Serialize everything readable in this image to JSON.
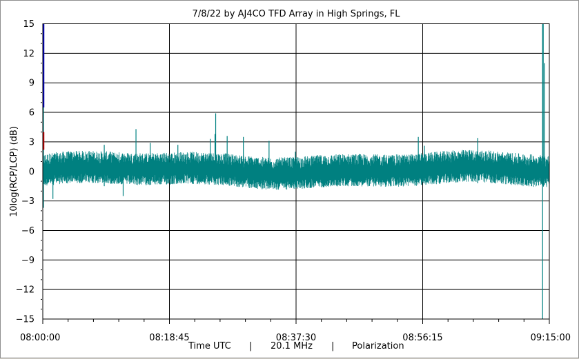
{
  "chart_data": {
    "type": "line",
    "title": "7/8/22  by  AJ4CO TFD Array  in  High Springs, FL",
    "xlabel": "Time UTC",
    "ylabel": "10log(RCP/LCP) (dB)",
    "frequency": "20.1 MHz",
    "mode": "Polarization",
    "separator": "|",
    "ylim": [
      -15,
      15
    ],
    "y_ticks": [
      15,
      12,
      9,
      6,
      3,
      0,
      -3,
      -6,
      -9,
      -12,
      -15
    ],
    "x_ticks": [
      "08:00:00",
      "08:18:45",
      "08:37:30",
      "08:56:15",
      "09:15:00"
    ],
    "x_range_minutes": [
      0,
      75
    ],
    "grid": true,
    "series": [
      {
        "color": "#008080",
        "baseline_db": 0.0,
        "noise_band_db": [
          -1.5,
          1.8
        ],
        "spikes": [
          {
            "t": 0.1,
            "lo": -3.7,
            "hi": 15
          },
          {
            "t": 1.5,
            "lo": -2.8,
            "hi": 1.2
          },
          {
            "t": 9.1,
            "lo": -1.5,
            "hi": 2.7
          },
          {
            "t": 11.9,
            "lo": -2.5,
            "hi": 1.5
          },
          {
            "t": 13.8,
            "lo": -1.0,
            "hi": 4.3
          },
          {
            "t": 15.9,
            "lo": -1.0,
            "hi": 2.9
          },
          {
            "t": 20.0,
            "lo": -1.2,
            "hi": 2.7
          },
          {
            "t": 24.8,
            "lo": -1.0,
            "hi": 3.3
          },
          {
            "t": 25.5,
            "lo": -1.0,
            "hi": 3.8
          },
          {
            "t": 25.6,
            "lo": -1.2,
            "hi": 5.9
          },
          {
            "t": 27.3,
            "lo": -1.0,
            "hi": 3.6
          },
          {
            "t": 29.7,
            "lo": -1.0,
            "hi": 3.5
          },
          {
            "t": 33.5,
            "lo": -1.0,
            "hi": 3.1
          },
          {
            "t": 37.4,
            "lo": -1.0,
            "hi": 2.0
          },
          {
            "t": 55.6,
            "lo": -1.0,
            "hi": 3.5
          },
          {
            "t": 56.5,
            "lo": -1.0,
            "hi": 2.6
          },
          {
            "t": 64.4,
            "lo": -1.2,
            "hi": 3.4
          },
          {
            "t": 74.0,
            "lo": -15,
            "hi": 15
          },
          {
            "t": 74.1,
            "lo": -1.5,
            "hi": 15
          },
          {
            "t": 74.3,
            "lo": -1.0,
            "hi": 11.0
          }
        ]
      },
      {
        "color": "#0000c0",
        "segment": {
          "t": 0.0,
          "lo": 6.5,
          "hi": 15
        }
      },
      {
        "color": "#c00000",
        "segment": {
          "t": 0.0,
          "lo": 2.2,
          "hi": 4.0
        }
      }
    ]
  }
}
